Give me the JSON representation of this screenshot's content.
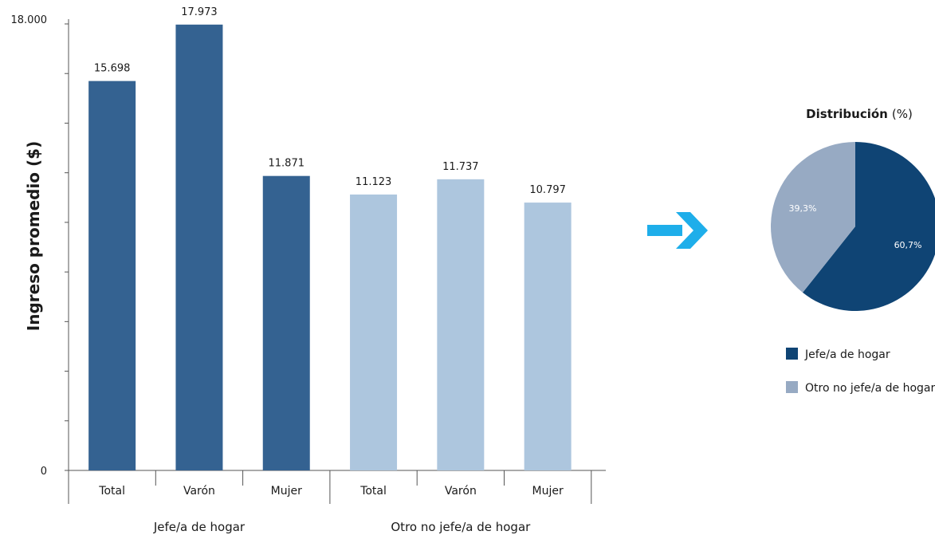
{
  "colors": {
    "jefe_bar": "#346291",
    "otro_bar": "#adc6de",
    "pie_jefe": "#0f4474",
    "pie_otro": "#97aac3",
    "arrow": "#1eaeea"
  },
  "chart_data": [
    {
      "type": "bar",
      "ylabel": "Ingreso promedio ($)",
      "ylim": [
        0,
        18000
      ],
      "y_tick_labels": [
        "0",
        "18.000"
      ],
      "grid": false,
      "groups": [
        {
          "name": "Jefe/a de hogar",
          "color_key": "jefe_bar",
          "categories": [
            "Total",
            "Varón",
            "Mujer"
          ],
          "values": [
            15698,
            17973,
            11871
          ],
          "labels": [
            "15.698",
            "17.973",
            "11.871"
          ]
        },
        {
          "name": "Otro no jefe/a de hogar",
          "color_key": "otro_bar",
          "categories": [
            "Total",
            "Varón",
            "Mujer"
          ],
          "values": [
            11123,
            11737,
            10797
          ],
          "labels": [
            "11.123",
            "11.737",
            "10.797"
          ]
        }
      ]
    },
    {
      "type": "pie",
      "title": "Distribución",
      "title_suffix": "(%)",
      "slices": [
        {
          "name": "Jefe/a de hogar",
          "value": 60.7,
          "label": "60,7%",
          "color_key": "pie_jefe"
        },
        {
          "name": "Otro no jefe/a de hogar",
          "value": 39.3,
          "label": "39,3%",
          "color_key": "pie_otro"
        }
      ],
      "legend_position": "bottom"
    }
  ]
}
